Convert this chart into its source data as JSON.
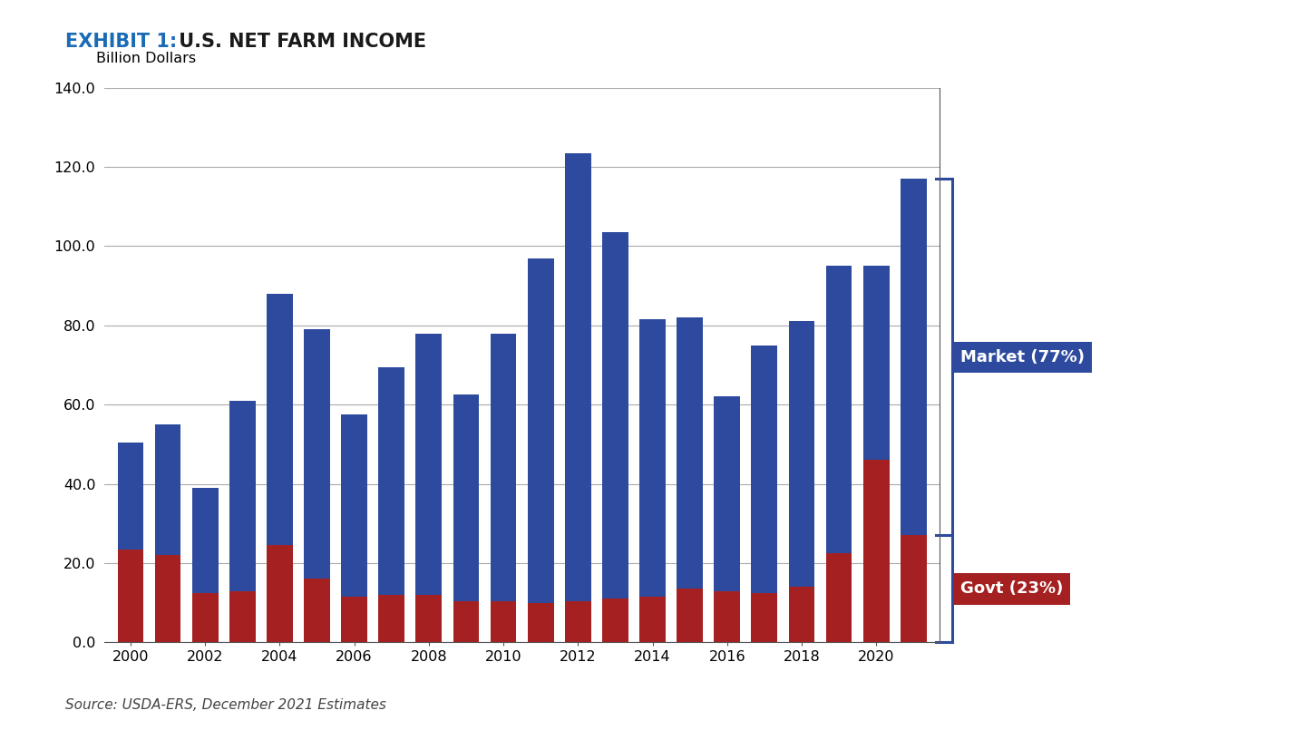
{
  "years": [
    2000,
    2001,
    2002,
    2003,
    2004,
    2005,
    2006,
    2007,
    2008,
    2009,
    2010,
    2011,
    2012,
    2013,
    2014,
    2015,
    2016,
    2017,
    2018,
    2019,
    2020,
    2021
  ],
  "govt": [
    23.5,
    22.0,
    12.5,
    13.0,
    24.5,
    16.0,
    11.5,
    12.0,
    12.0,
    10.5,
    10.5,
    10.0,
    10.5,
    11.0,
    11.5,
    13.5,
    13.0,
    12.5,
    14.0,
    22.5,
    46.0,
    27.0
  ],
  "market": [
    27.0,
    33.0,
    26.5,
    48.0,
    63.5,
    63.0,
    46.0,
    57.5,
    66.0,
    52.0,
    67.5,
    87.0,
    113.0,
    92.5,
    70.0,
    68.5,
    49.0,
    62.5,
    67.0,
    72.5,
    49.0,
    90.0
  ],
  "market_color": "#2E4A9E",
  "govt_color": "#A52020",
  "title_exhibit": "EXHIBIT 1:",
  "title_main": " U.S. NET FARM INCOME",
  "ylabel": "Billion Dollars",
  "ylim": [
    0,
    140
  ],
  "yticks": [
    0.0,
    20.0,
    40.0,
    60.0,
    80.0,
    100.0,
    120.0,
    140.0
  ],
  "source": "Source: USDA-ERS, December 2021 Estimates",
  "label_market": "Market (77%)",
  "label_govt": "Govt (23%)",
  "bracket_color": "#2E4A9E",
  "background_color": "#ffffff",
  "exhibit_color": "#1A6BB5",
  "title_color": "#1a1a1a"
}
